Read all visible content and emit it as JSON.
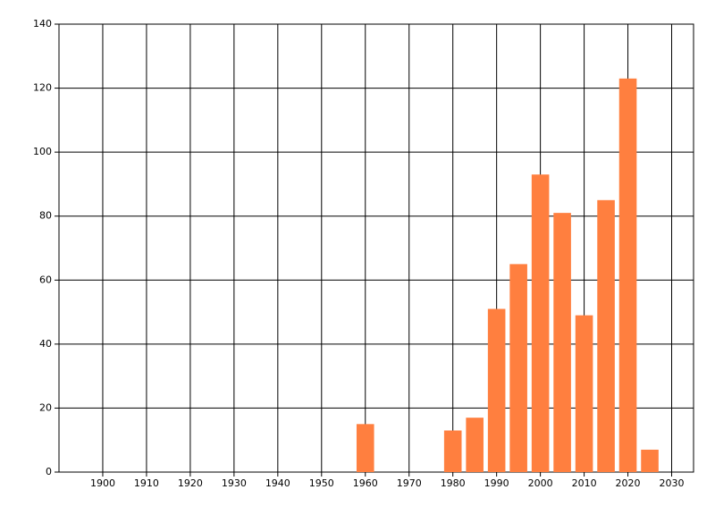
{
  "chart_data": {
    "type": "bar",
    "x": [
      1960,
      1980,
      1985,
      1990,
      1995,
      2000,
      2005,
      2010,
      2015,
      2020,
      2025
    ],
    "values": [
      15,
      13,
      17,
      51,
      65,
      93,
      81,
      49,
      85,
      123,
      7
    ],
    "color": "#ff7f3f",
    "xlim": [
      1890,
      2035
    ],
    "xticks": [
      1900,
      1910,
      1920,
      1930,
      1940,
      1950,
      1960,
      1970,
      1980,
      1990,
      2000,
      2010,
      2020,
      2030
    ],
    "ylim": [
      0,
      140
    ],
    "yticks": [
      0,
      20,
      40,
      60,
      80,
      100,
      120,
      140
    ],
    "grid": true
  }
}
